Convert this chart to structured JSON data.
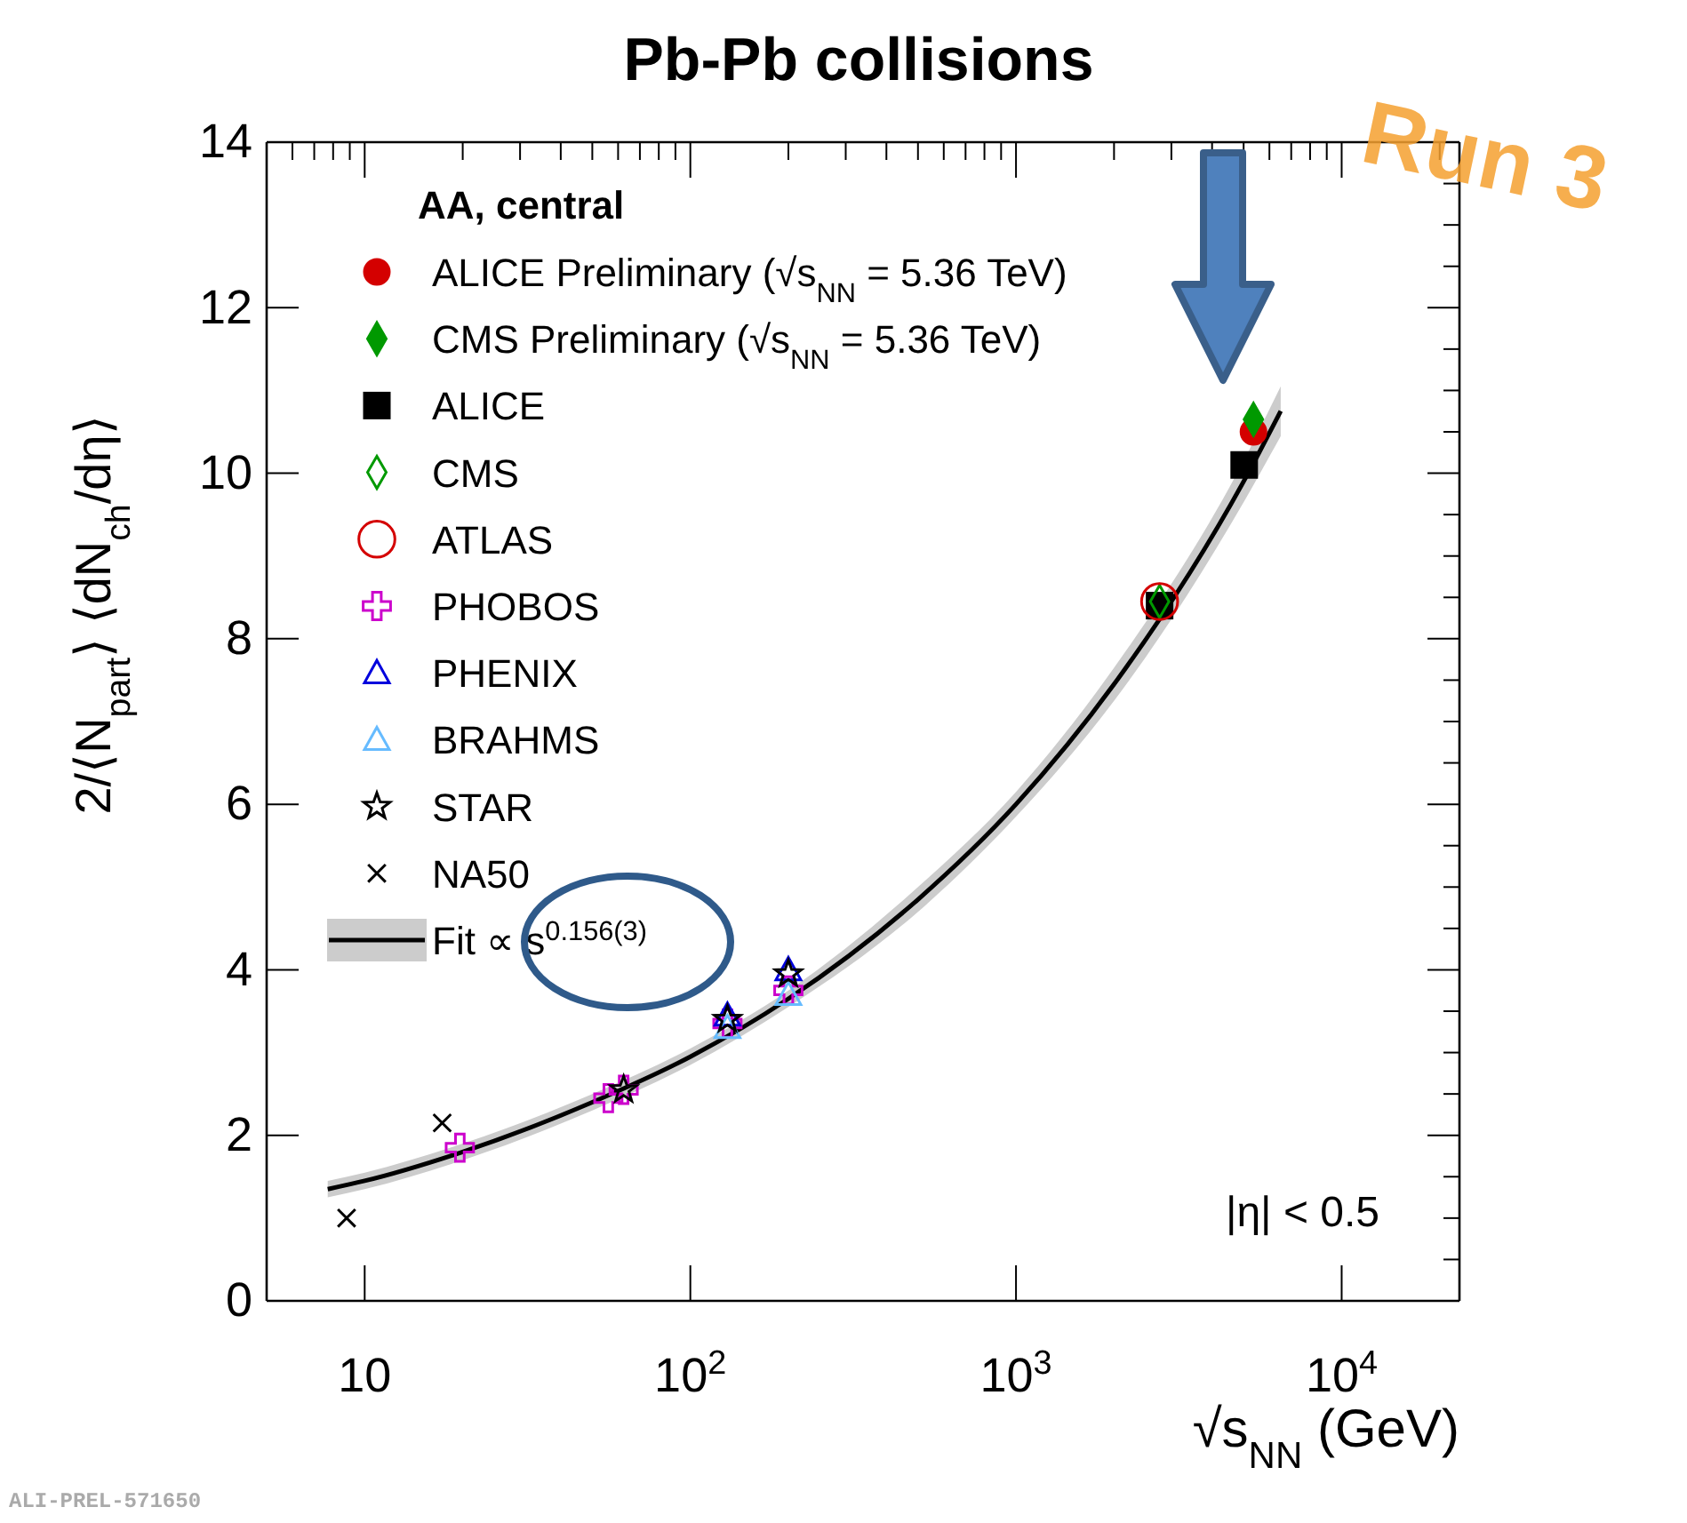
{
  "chart_data": {
    "type": "scatter",
    "title": "Pb-Pb collisions",
    "xlabel": "√s$_{NN}$ (GeV)",
    "ylabel": "2/⟨N$_{part}$⟩ ⟨dN$_{ch}$/dη⟩",
    "legend_title": "AA, central",
    "log": "x",
    "xlim": [
      5,
      23000
    ],
    "ylim": [
      0,
      14
    ],
    "xticks": [
      {
        "value": 10,
        "label": "10"
      },
      {
        "value": 100,
        "label": "10$^{2}$"
      },
      {
        "value": 1000,
        "label": "10$^{3}$"
      },
      {
        "value": 10000,
        "label": "10$^{4}$"
      }
    ],
    "yticks": [
      0,
      2,
      4,
      6,
      8,
      10,
      12,
      14
    ],
    "grid": false,
    "legend": "top left",
    "annotations": [
      "|η| < 0.5",
      "Run 3",
      "ALI-PREL-571650"
    ],
    "series": [
      {
        "name": "ALICE Preliminary (√s$_{NN}$ = 5.36 TeV)",
        "color": "#d40000",
        "marker": "circle",
        "x": [
          5360
        ],
        "values": [
          10.5
        ]
      },
      {
        "name": "CMS Preliminary (√s$_{NN}$ = 5.36 TeV)",
        "color": "#009900",
        "marker": "diamond",
        "x": [
          5360
        ],
        "values": [
          10.65
        ]
      },
      {
        "name": "ALICE",
        "color": "#000000",
        "marker": "square",
        "x": [
          2760,
          5020
        ],
        "values": [
          8.4,
          10.1
        ]
      },
      {
        "name": "CMS",
        "color": "#009900",
        "marker": "diamond",
        "x": [
          2760
        ],
        "values": [
          8.45
        ]
      },
      {
        "name": "ATLAS",
        "color": "#d40000",
        "marker": "circle",
        "x": [
          2760
        ],
        "values": [
          8.45
        ]
      },
      {
        "name": "PHOBOS",
        "color": "#cc00cc",
        "marker": "cross",
        "x": [
          19.6,
          56,
          62.4,
          130,
          200
        ],
        "values": [
          1.85,
          2.45,
          2.55,
          3.35,
          3.75
        ]
      },
      {
        "name": "PHENIX",
        "color": "#0000dd",
        "marker": "triangle",
        "x": [
          130,
          200
        ],
        "values": [
          3.45,
          4.0
        ]
      },
      {
        "name": "BRAHMS",
        "color": "#66bbff",
        "marker": "triangle",
        "x": [
          130,
          200
        ],
        "values": [
          3.3,
          3.7
        ]
      },
      {
        "name": "STAR",
        "color": "#000000",
        "marker": "star",
        "x": [
          62.4,
          130,
          200
        ],
        "values": [
          2.55,
          3.4,
          3.95
        ]
      },
      {
        "name": "NA50",
        "color": "#000000",
        "marker": "cross",
        "x": [
          8.8,
          17.3
        ],
        "values": [
          1.0,
          2.15
        ]
      },
      {
        "name": "Fit ∝ s$^{0.156(3)}$",
        "type": "line",
        "color": "#000000",
        "x": [
          7.7,
          10,
          20,
          50,
          100,
          200,
          500,
          1000,
          2000,
          5000,
          6500
        ],
        "values": [
          1.35,
          1.45,
          1.8,
          2.4,
          2.95,
          3.65,
          4.85,
          6.0,
          7.45,
          9.9,
          10.75
        ],
        "lower": [
          1.25,
          1.35,
          1.7,
          2.3,
          2.85,
          3.55,
          4.7,
          5.85,
          7.25,
          9.65,
          10.45
        ],
        "upper": [
          1.45,
          1.55,
          1.9,
          2.5,
          3.05,
          3.75,
          5.0,
          6.15,
          7.65,
          10.15,
          11.05
        ]
      }
    ]
  }
}
